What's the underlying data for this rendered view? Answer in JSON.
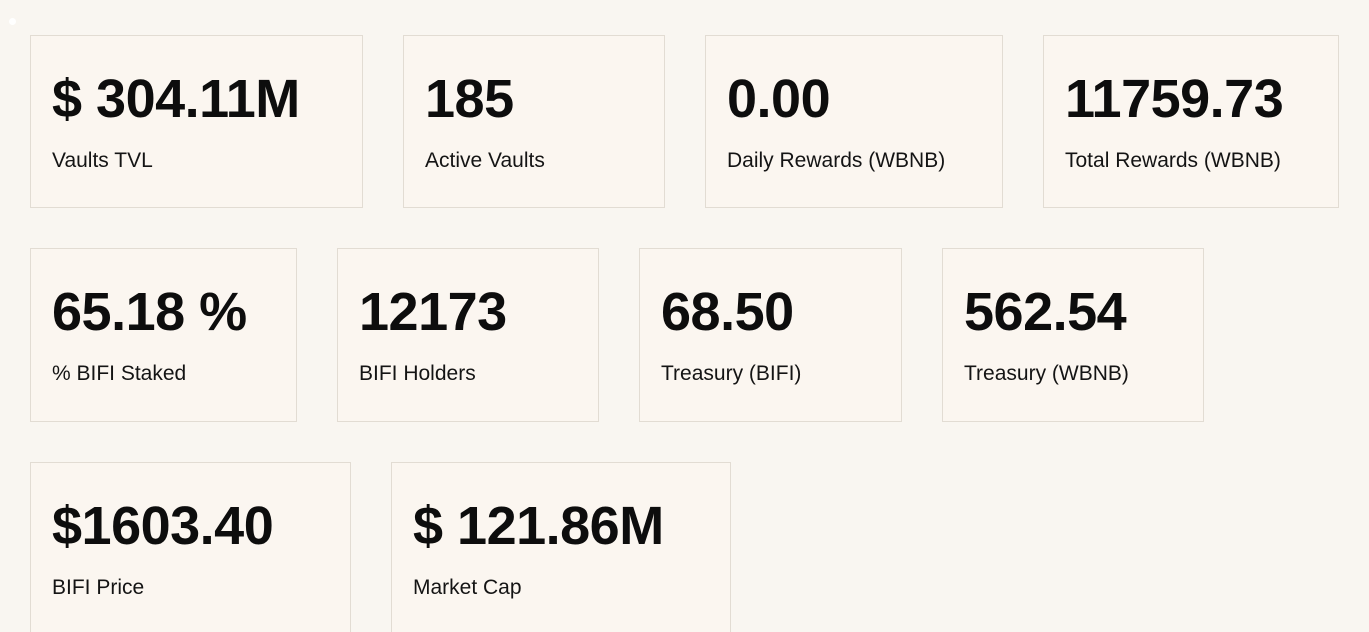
{
  "stats": [
    {
      "value": "$ 304.11M",
      "label": "Vaults TVL"
    },
    {
      "value": "185",
      "label": "Active Vaults"
    },
    {
      "value": "0.00",
      "label": "Daily Rewards (WBNB)"
    },
    {
      "value": "11759.73",
      "label": "Total Rewards (WBNB)"
    },
    {
      "value": "65.18 %",
      "label": "% BIFI Staked"
    },
    {
      "value": "12173",
      "label": "BIFI Holders"
    },
    {
      "value": "68.50",
      "label": "Treasury (BIFI)"
    },
    {
      "value": "562.54",
      "label": "Treasury (WBNB)"
    },
    {
      "value": "$1603.40",
      "label": "BIFI Price"
    },
    {
      "value": "$ 121.86M",
      "label": "Market Cap"
    }
  ]
}
